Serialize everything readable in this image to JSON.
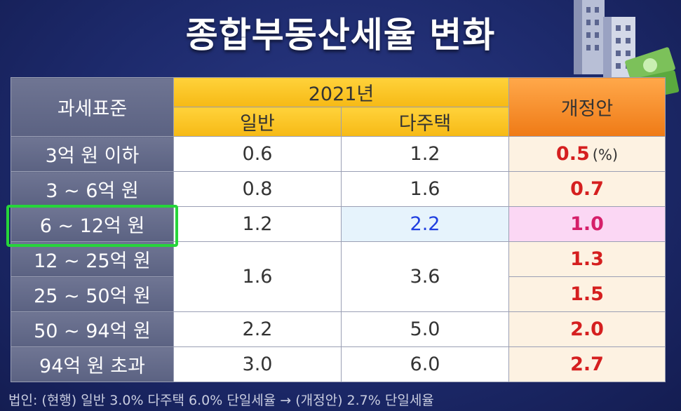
{
  "title": "종합부동산세율 변화",
  "table": {
    "header_base": "과세표준",
    "header_year": "2021년",
    "header_general": "일반",
    "header_multi": "다주택",
    "header_revised": "개정안",
    "unit": "(%)",
    "brackets": [
      "3억 원 이하",
      "3 ~ 6억 원",
      "6 ~ 12억 원",
      "12 ~ 25억 원",
      "25 ~ 50억 원",
      "50 ~ 94억 원",
      "94억 원 초과"
    ],
    "general": [
      "0.6",
      "0.8",
      "1.2",
      "1.6",
      "2.2",
      "3.0"
    ],
    "multi": [
      "1.2",
      "1.6",
      "2.2",
      "3.6",
      "5.0",
      "6.0"
    ],
    "revised": [
      "0.5",
      "0.7",
      "1.0",
      "1.3",
      "1.5",
      "2.0",
      "2.7"
    ]
  },
  "highlight_row": "6 ~ 12억 원",
  "footnote": "법인: (현행) 일반 3.0% 다주택 6.0% 단일세율 → (개정안) 2.7% 단일세율",
  "colors": {
    "background": "#1d2a6c",
    "year_header": "#ffcc29",
    "revised_header": "#f5891f",
    "revised_value": "#d51f1f",
    "highlight_multi": "#1f3ee0",
    "highlight_border": "#26d53a"
  },
  "icons": [
    "building-icon",
    "money-icon"
  ]
}
